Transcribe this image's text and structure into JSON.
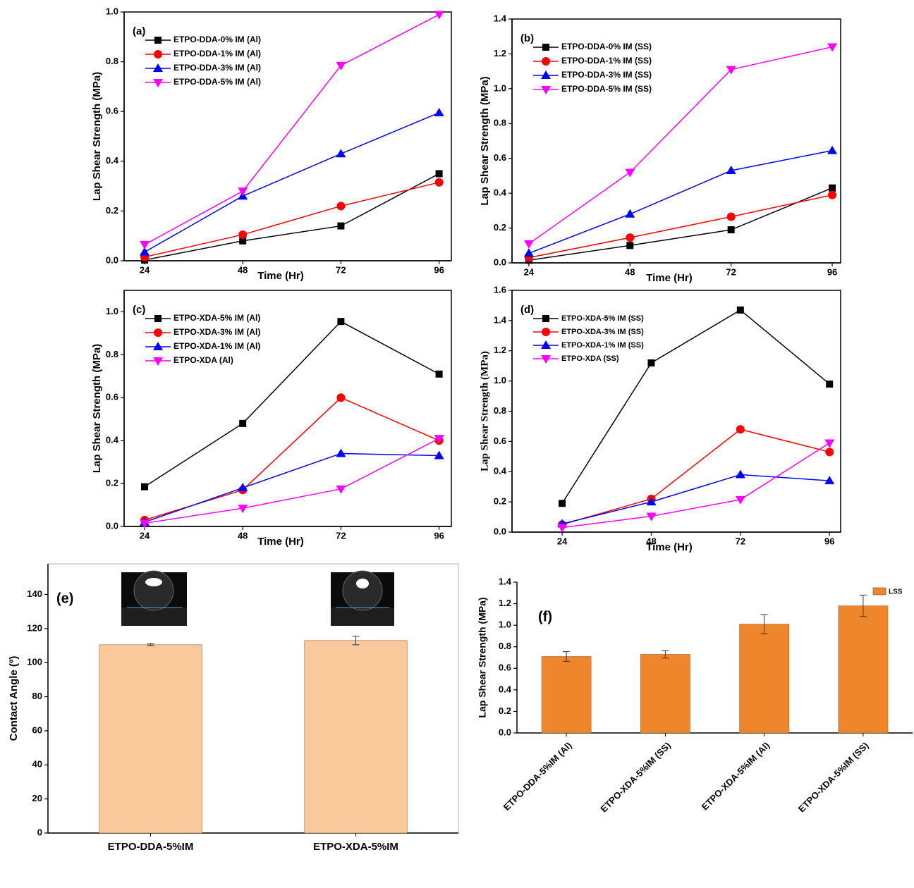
{
  "chart_data": [
    {
      "type": "line",
      "title": "(a)",
      "xlabel": "Time (Hr)",
      "ylabel": "Lap Shear Strength (MPa)",
      "x": [
        24,
        48,
        72,
        96
      ],
      "xlim": [
        19,
        99
      ],
      "xticks": [
        24,
        48,
        72,
        96
      ],
      "ylim": [
        0,
        1
      ],
      "yticks": [
        {
          "value": 0,
          "label": "0.0"
        },
        0.2,
        0.4,
        0.6,
        0.8,
        {
          "value": 1,
          "label": "1.0"
        }
      ],
      "legend": "upper left",
      "series": [
        {
          "name": "ETPO-DDA-0% IM (Al)",
          "color": "#000000",
          "marker": "square",
          "values": [
            0.003,
            0.08,
            0.14,
            0.35
          ]
        },
        {
          "name": "ETPO-DDA-1% IM (Al)",
          "color": "#ff0000",
          "marker": "circle",
          "values": [
            0.015,
            0.105,
            0.22,
            0.315
          ]
        },
        {
          "name": "ETPO-DDA-3% IM (Al)",
          "color": "#0000ff",
          "marker": "triangle-up",
          "values": [
            0.035,
            0.26,
            0.43,
            0.595
          ]
        },
        {
          "name": "ETPO-DDA-5% IM (Al)",
          "color": "#ff00ff",
          "marker": "triangle-down",
          "values": [
            0.065,
            0.28,
            0.785,
            0.99
          ]
        }
      ]
    },
    {
      "type": "line",
      "title": "(b)",
      "xlabel": "Time (Hr)",
      "ylabel": "Lap Shear Strength (MPa)",
      "x": [
        24,
        48,
        72,
        96
      ],
      "xlim": [
        20,
        98
      ],
      "xticks": [
        24,
        48,
        72,
        96
      ],
      "ylim": [
        0,
        1.4
      ],
      "yticks": [
        {
          "value": 0,
          "label": "0.0"
        },
        0.2,
        0.4,
        0.6,
        0.8,
        {
          "value": 1,
          "label": "1.0"
        },
        1.2,
        1.4
      ],
      "legend": "upper left",
      "series": [
        {
          "name": "ETPO-DDA-0% IM (SS)",
          "color": "#000000",
          "marker": "square",
          "values": [
            0.015,
            0.1,
            0.19,
            0.43
          ]
        },
        {
          "name": "ETPO-DDA-1% IM (SS)",
          "color": "#ff0000",
          "marker": "circle",
          "values": [
            0.03,
            0.145,
            0.265,
            0.39
          ]
        },
        {
          "name": "ETPO-DDA-3% IM (SS)",
          "color": "#0000ff",
          "marker": "triangle-up",
          "values": [
            0.055,
            0.28,
            0.53,
            0.645
          ]
        },
        {
          "name": "ETPO-DDA-5% IM (SS)",
          "color": "#ff00ff",
          "marker": "triangle-down",
          "values": [
            0.11,
            0.52,
            1.11,
            1.24
          ]
        }
      ]
    },
    {
      "type": "line",
      "title": "(c)",
      "xlabel": "Time (Hr)",
      "ylabel": "Lap Shear Strength (MPa)",
      "x": [
        24,
        48,
        72,
        96
      ],
      "xlim": [
        19,
        99
      ],
      "xticks": [
        24,
        48,
        72,
        96
      ],
      "ylim": [
        0,
        1.1
      ],
      "yticks": [
        {
          "value": 0,
          "label": "0.0"
        },
        0.2,
        0.4,
        0.6,
        0.8,
        {
          "value": 1,
          "label": "1.0"
        }
      ],
      "legend": "upper left",
      "series": [
        {
          "name": "ETPO-XDA-5% IM (Al)",
          "color": "#000000",
          "marker": "square",
          "values": [
            0.185,
            0.48,
            0.955,
            0.71
          ]
        },
        {
          "name": "ETPO-XDA-3% IM (Al)",
          "color": "#ff0000",
          "marker": "circle",
          "values": [
            0.03,
            0.17,
            0.6,
            0.4
          ]
        },
        {
          "name": "ETPO-XDA-1% IM (Al)",
          "color": "#0000ff",
          "marker": "triangle-up",
          "values": [
            0.02,
            0.18,
            0.34,
            0.33
          ]
        },
        {
          "name": "ETPO-XDA (Al)",
          "color": "#ff00ff",
          "marker": "triangle-down",
          "values": [
            0.015,
            0.085,
            0.175,
            0.41
          ]
        }
      ]
    },
    {
      "type": "line",
      "title": "(d)",
      "xlabel": "Time (Hr)",
      "ylabel": "Lap Shear Strength (MPa)",
      "x": [
        24,
        48,
        72,
        96
      ],
      "xlim": [
        10.5,
        99
      ],
      "xticks": [
        24,
        48,
        72,
        96
      ],
      "ylim": [
        0,
        1.6
      ],
      "yticks": [
        {
          "value": 0,
          "label": "0.0"
        },
        0.2,
        0.4,
        0.6,
        0.8,
        {
          "value": 1,
          "label": "1.0"
        },
        1.2,
        1.4,
        1.6
      ],
      "legend": "upper left",
      "series": [
        {
          "name": "ETPO-XDA-5% IM (SS)",
          "color": "#000000",
          "marker": "square",
          "values": [
            0.19,
            1.12,
            1.47,
            0.98
          ]
        },
        {
          "name": "ETPO-XDA-3% IM (SS)",
          "color": "#ff0000",
          "marker": "circle",
          "values": [
            0.05,
            0.22,
            0.68,
            0.53
          ]
        },
        {
          "name": "ETPO-XDA-1% IM (SS)",
          "color": "#0000ff",
          "marker": "triangle-up",
          "values": [
            0.055,
            0.2,
            0.38,
            0.34
          ]
        },
        {
          "name": "ETPO-XDA (SS)",
          "color": "#ff00ff",
          "marker": "triangle-down",
          "values": [
            0.03,
            0.105,
            0.215,
            0.59
          ]
        }
      ]
    },
    {
      "type": "bar",
      "title": "(e)",
      "ylabel": "Contact Angle (º)",
      "categories": [
        "ETPO-DDA-5%IM",
        "ETPO-XDA-5%IM"
      ],
      "values": [
        110.5,
        113
      ],
      "errors": [
        0.5,
        2.5
      ],
      "color": "#f9c89b",
      "ylim": [
        0,
        158
      ],
      "yticks": [
        0,
        20,
        40,
        60,
        80,
        100,
        120,
        140
      ]
    },
    {
      "type": "bar",
      "title": "(f)",
      "ylabel": "Lap Shear Strength (MPa)",
      "categories": [
        "ETPO-DDA-5%IM (Al)",
        "ETPO-XDA-5%IM (SS)",
        "ETPO-XDA-5%IM (Al)",
        "ETPO-XDA-5%IM (SS)"
      ],
      "series": [
        {
          "name": "LSS",
          "color": "#f0862c",
          "values": [
            0.71,
            0.73,
            1.01,
            1.18
          ],
          "errors": [
            0.045,
            0.035,
            0.09,
            0.1
          ]
        }
      ],
      "legend": "upper right",
      "rotate_labels": true,
      "ylim": [
        0,
        1.4
      ],
      "yticks": [
        {
          "value": 0,
          "label": "0.0"
        },
        0.2,
        0.4,
        0.6,
        0.8,
        {
          "value": 1,
          "label": "1.0"
        },
        1.2,
        1.4
      ]
    }
  ]
}
